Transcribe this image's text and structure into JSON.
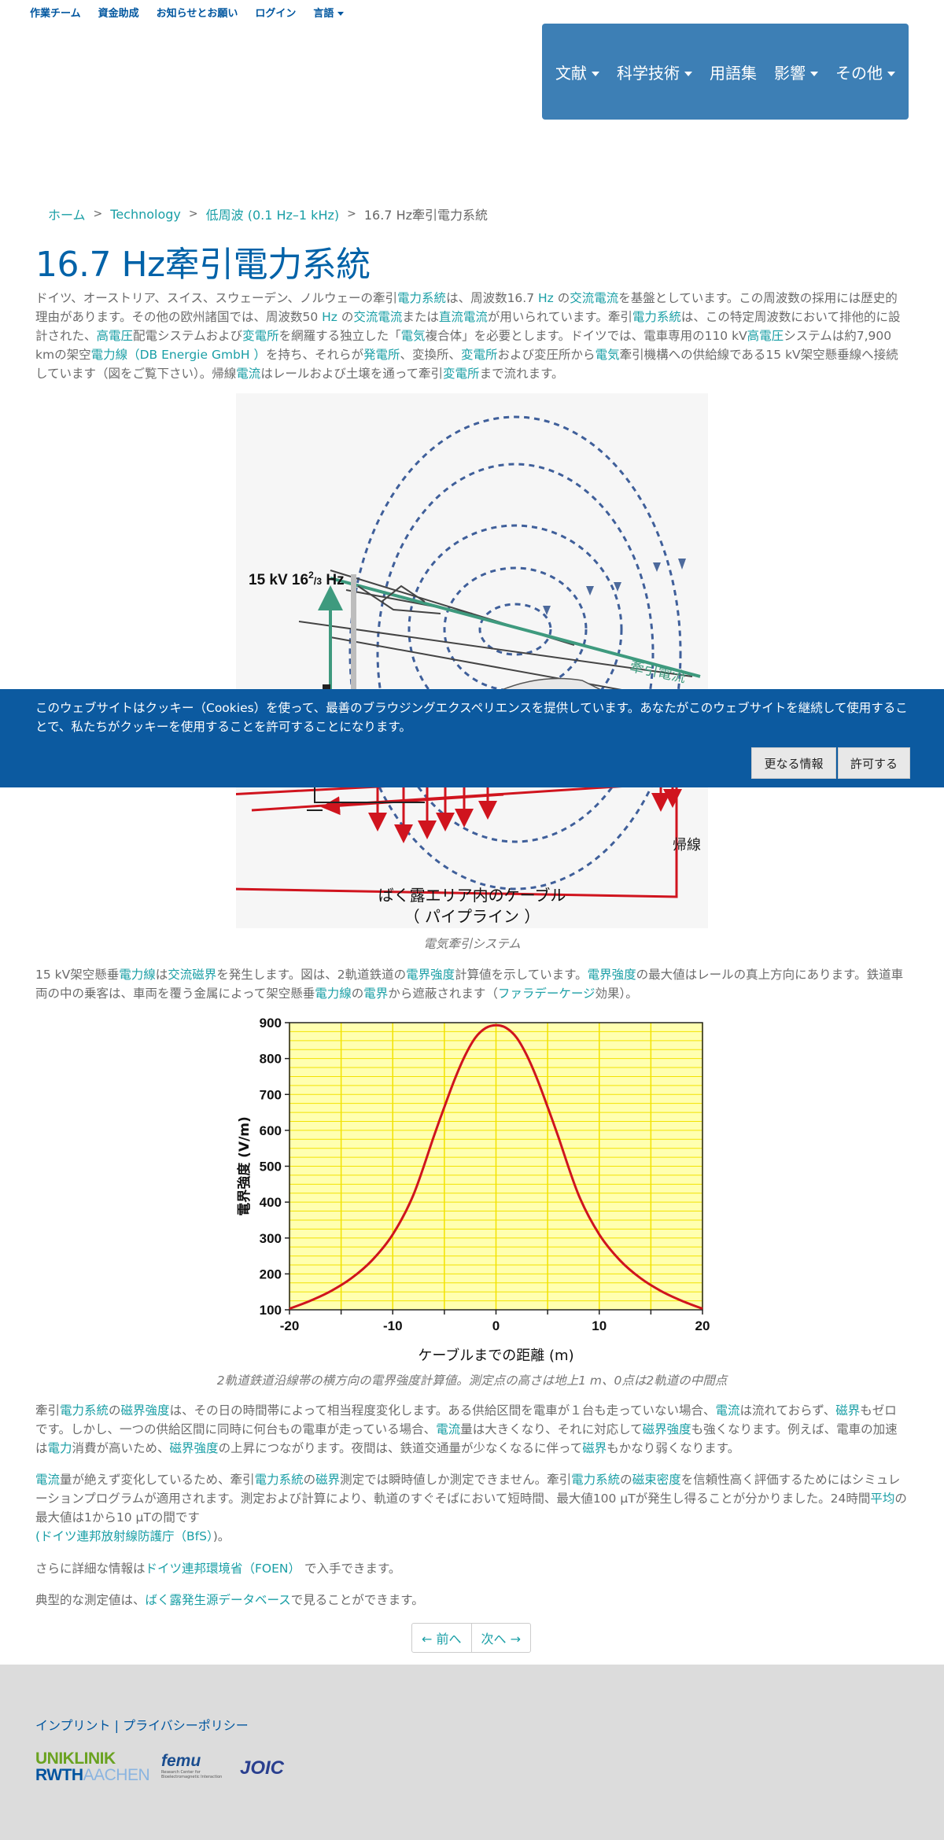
{
  "topbar": {
    "team": "作業チーム",
    "funding": "資金助成",
    "news": "お知らせとお願い",
    "login": "ログイン",
    "language": "言語"
  },
  "nav": {
    "literature": "文献",
    "science": "科学技術",
    "glossary": "用語集",
    "impact": "影響",
    "other": "その他"
  },
  "breadcrumb": {
    "home": "ホーム",
    "technology": "Technology",
    "lowfreq": "低周波 (0.1 Hz–1 kHz)",
    "current": "16.7 Hz牽引電力系統",
    "sep": ">"
  },
  "page_title": "16.7 Hz牽引電力系統",
  "intro": {
    "s1": "ドイツ、オーストリア、スイス、スウェーデン、ノルウェーの牽引",
    "l1": "電力系統",
    "s2": "は、周波数16.7 ",
    "l2": "Hz",
    "s3": " の",
    "l3": "交流電流",
    "s4": "を基盤としています。この周波数の採用には歴史的理由があります。その他の欧州諸国では、周波数50 ",
    "l4": "Hz",
    "s5": " の",
    "l5": "交流電流",
    "s6": "または",
    "l6": "直流電流",
    "s7": "が用いられています。牽引",
    "l7": "電力系統",
    "s8": "は、この特定周波数において排他的に設計された、",
    "l8": "高電圧",
    "s9": "配電システムおよび",
    "l9": "変電所",
    "s10": "を網羅する独立した「",
    "l10": "電気",
    "s11": "複合体」を必要とします。ドイツでは、電車専用の110 kV",
    "l11": "高電圧",
    "s12": "システムは約7,900 kmの架空",
    "l12": "電力線",
    "l13": "（DB Energie GmbH ）",
    "s13": "を持ち、それらが",
    "l14": "発電所",
    "s14": "、変換所、",
    "l15": "変電所",
    "s15": "および変圧所から",
    "l16": "電気",
    "s16": "牽引機構への供給線である15 kV架空懸垂線へ接続しています（図をご覧下さい）。帰線",
    "l17": "電流",
    "s17": "はレールおよび土壌を通って牽引",
    "l18": "変電所",
    "s18": "まで流れます。"
  },
  "diagram": {
    "voltage_label": "15 kV 16",
    "voltage_sup": "2",
    "voltage_slash": "/",
    "voltage_sub": "3",
    "voltage_unit": " Hz",
    "traction_current": "牽引電流",
    "return_line": "帰線",
    "cable_line1": "ばく露エリア内のケーブル",
    "cable_line2": "（ パイプライン ）",
    "caption": "電気牽引システム"
  },
  "para2": {
    "s1": "15 kV架空懸垂",
    "l1": "電力線",
    "s2": "は",
    "l2": "交流磁界",
    "s3": "を発生します。図は、2軌道鉄道の",
    "l3": "電界強度",
    "s4": "計算値を示しています。",
    "l4": "電界強度",
    "s5": "の最大値はレールの真上方向にあります。鉄道車両の中の乗客は、車両を覆う金属によって架空懸垂",
    "l5": "電力線",
    "s6": "の",
    "l6": "電界",
    "s7": "から遮蔽されます（",
    "l7": "ファラデーケージ",
    "s8": "効果）。"
  },
  "chart_data": {
    "type": "line",
    "xlabel": "ケーブルまでの距離 (m)",
    "ylabel": "電界強度 (V/m)",
    "xlim": [
      -20,
      20
    ],
    "ylim": [
      100,
      900
    ],
    "x_ticks": [
      -20,
      -10,
      0,
      10,
      20
    ],
    "y_ticks": [
      100,
      200,
      300,
      400,
      500,
      600,
      700,
      800,
      900
    ],
    "grid": true,
    "line_color": "#d0141e",
    "grid_color": "#f2e200",
    "series": [
      {
        "x": [
          -20,
          -18,
          -16,
          -14,
          -12,
          -10,
          -8,
          -6,
          -5,
          -4,
          -3,
          -2,
          -1,
          0,
          1,
          2,
          3,
          4,
          5,
          6,
          8,
          10,
          12,
          14,
          16,
          18,
          20
        ],
        "values": [
          103,
          125,
          152,
          188,
          238,
          310,
          420,
          585,
          665,
          742,
          808,
          858,
          885,
          893,
          885,
          858,
          808,
          742,
          665,
          585,
          420,
          310,
          238,
          188,
          152,
          125,
          103
        ]
      }
    ],
    "caption": "2軌道鉄道沿線帯の横方向の電界強度計算値。測定点の高さは地上1 m、0点は2軌道の中間点"
  },
  "para3": {
    "s1": "牽引",
    "l1": "電力系統",
    "s2": "の",
    "l2": "磁界強度",
    "s3": "は、その日の時間帯によって相当程度変化します。ある供給区間を電車が１台も走っていない場合、",
    "l3": "電流",
    "s4": "は流れておらず、",
    "l4": "磁界",
    "s5": "もゼロです。しかし、一つの供給区間に同時に何台もの電車が走っている場合、",
    "l5": "電流",
    "s6": "量は大きくなり、それに対応して",
    "l6": "磁界強度",
    "s7": "も強くなります。例えば、電車の加速は",
    "l7": "電力",
    "s8": "消費が高いため、",
    "l8": "磁界強度",
    "s9": "の上昇につながります。夜間は、鉄道交通量が少なくなるに伴って",
    "l9": "磁界",
    "s10": "もかなり弱くなります。"
  },
  "para4": {
    "l1": "電流",
    "s1": "量が絶えず変化しているため、牽引",
    "l2": "電力系統",
    "s2": "の",
    "l3": "磁界",
    "s3": "測定では瞬時値しか測定できません。牽引",
    "l4": "電力系統",
    "s4": "の",
    "l5": "磁束密度",
    "s5": "を信頼性高く評価するためにはシミュレーションプログラムが適用されます。測定および計算により、軌道のすぐそばにおいて短時間、最大値100 µTが発生し得ることが分かりました。24時間",
    "l6": "平均",
    "s6": "の最大値は1から10 µTの間です",
    "l7": "(ドイツ連邦放射線防護庁（BfS）",
    "s7": ")。"
  },
  "para5": {
    "s1": "さらに詳細な情報は",
    "l1": "ドイツ連邦環境省（FOEN）",
    "s2": " で入手できます。"
  },
  "para6": {
    "s1": "典型的な測定値は、",
    "l1": "ばく露発生源データベース",
    "s2": "で見ることができます。"
  },
  "pager": {
    "prev": "← 前へ",
    "next": "次へ →"
  },
  "cookie": {
    "text": "このウェブサイトはクッキー（Cookies）を使って、最善のブラウジングエクスペリエンスを提供しています。あなたがこのウェブサイトを継続して使用することで、私たちがクッキーを使用することを許可することになります。",
    "more": "更なる情報",
    "allow": "許可する"
  },
  "footer": {
    "imprint": "インプリント",
    "divider": " | ",
    "privacy": "プライバシーポリシー",
    "logo1_top": "UNIKLINIK",
    "logo1_bottom_a": "RWTH",
    "logo1_bottom_b": "AACHEN",
    "logo2_main": "femu",
    "logo2_sub": "Research Center for Bioelectromagnetic Interaction",
    "logo3": "JOIC"
  }
}
